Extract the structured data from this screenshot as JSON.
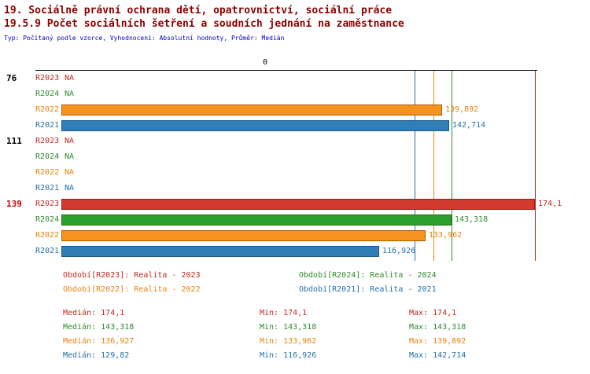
{
  "header": {
    "title1": "19. Sociálně právní ochrana dětí, opatrovnictví, sociální práce",
    "title2": "19.5.9 Počet sociálních šetření a soudních jednání na zaměstnance",
    "subtitle": "Typ: Počítaný podle vzorce, Vyhodnocení: Absolutní hodnoty, Průměr: Medián"
  },
  "axis": {
    "zero_label": "0"
  },
  "colors": {
    "title": "#8b0000",
    "subtitle": "#0000cc",
    "group_label_default": "#000000",
    "group_label_highlight": "#cc0000",
    "R2023": {
      "fill": "#d23a2e",
      "border": "#8e211b",
      "text": "#c1281e",
      "line": "#c1281e"
    },
    "R2024": {
      "fill": "#2ca02c",
      "border": "#1d6f1d",
      "text": "#2e8b2e",
      "line": "#2e8b2e"
    },
    "R2022": {
      "fill": "#f6921e",
      "border": "#b05e00",
      "text": "#e8820c",
      "line": "#e8820c"
    },
    "R2021": {
      "fill": "#2f7fb6",
      "border": "#1b5a85",
      "text": "#2470a8",
      "line": "#2470a8"
    }
  },
  "chart_data": {
    "type": "bar",
    "orientation": "horizontal",
    "value_range": [
      0,
      174.1
    ],
    "series_order": [
      "R2023",
      "R2024",
      "R2022",
      "R2021"
    ],
    "groups": [
      {
        "label": "76",
        "highlight": false,
        "rows": [
          {
            "series": "R2023",
            "value": null,
            "display": "NA"
          },
          {
            "series": "R2024",
            "value": null,
            "display": "NA"
          },
          {
            "series": "R2022",
            "value": 139.892,
            "display": "139,892"
          },
          {
            "series": "R2021",
            "value": 142.714,
            "display": "142,714"
          }
        ]
      },
      {
        "label": "111",
        "highlight": false,
        "rows": [
          {
            "series": "R2023",
            "value": null,
            "display": "NA"
          },
          {
            "series": "R2024",
            "value": null,
            "display": "NA"
          },
          {
            "series": "R2022",
            "value": null,
            "display": "NA"
          },
          {
            "series": "R2021",
            "value": null,
            "display": "NA"
          }
        ]
      },
      {
        "label": "139",
        "highlight": true,
        "rows": [
          {
            "series": "R2023",
            "value": 174.1,
            "display": "174,1"
          },
          {
            "series": "R2024",
            "value": 143.318,
            "display": "143,318"
          },
          {
            "series": "R2022",
            "value": 133.962,
            "display": "133,962"
          },
          {
            "series": "R2021",
            "value": 116.926,
            "display": "116,926"
          }
        ]
      }
    ],
    "median_lines": [
      {
        "series": "R2023",
        "value": 174.1
      },
      {
        "series": "R2024",
        "value": 143.318
      },
      {
        "series": "R2022",
        "value": 136.927
      },
      {
        "series": "R2021",
        "value": 129.82
      }
    ]
  },
  "legend": [
    {
      "series": "R2023",
      "label": "Období[R2023]: Realita - 2023"
    },
    {
      "series": "R2024",
      "label": "Období[R2024]: Realita - 2024"
    },
    {
      "series": "R2022",
      "label": "Období[R2022]: Realita - 2022"
    },
    {
      "series": "R2021",
      "label": "Období[R2021]: Realita - 2021"
    }
  ],
  "stats": [
    {
      "series": "R2023",
      "median": "Medián: 174,1",
      "min": "Min: 174,1",
      "max": "Max: 174,1"
    },
    {
      "series": "R2024",
      "median": "Medián: 143,318",
      "min": "Min: 143,318",
      "max": "Max: 143,318"
    },
    {
      "series": "R2022",
      "median": "Medián: 136,927",
      "min": "Min: 133,962",
      "max": "Max: 139,892"
    },
    {
      "series": "R2021",
      "median": "Medián: 129,82",
      "min": "Min: 116,926",
      "max": "Max: 142,714"
    }
  ]
}
